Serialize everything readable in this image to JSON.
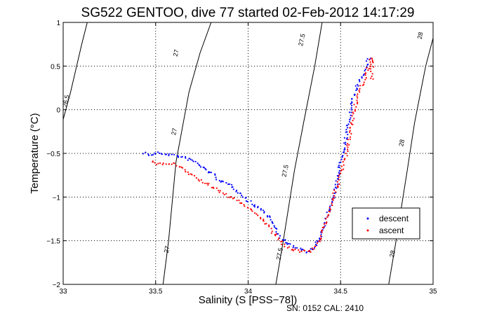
{
  "chart_data": {
    "type": "scatter",
    "title": "SG522 GENTOO, dive 77 started 02-Feb-2012 14:17:29",
    "xlabel": "Salinity (S [PSS−78])",
    "ylabel": "Temperature (°C)",
    "xlim": [
      33,
      35
    ],
    "ylim": [
      -2,
      1
    ],
    "x_ticks": [
      33,
      33.5,
      34,
      34.5,
      35
    ],
    "x_tick_labels": [
      "33",
      "33.5",
      "34",
      "34.5",
      "35"
    ],
    "y_ticks": [
      -2,
      -1.5,
      -1,
      -0.5,
      0,
      0.5,
      1
    ],
    "y_tick_labels": [
      "−2",
      "−1.5",
      "−1",
      "−0.5",
      "0",
      "0.5",
      "1"
    ],
    "grid": true,
    "legend_position": "lower-right",
    "footer": "SN: 0152  CAL: 2410",
    "density_contours": [
      {
        "label": "26.5",
        "points": [
          [
            32.995,
            -0.15
          ],
          [
            33.04,
            0.2
          ],
          [
            33.1,
            0.75
          ],
          [
            33.13,
            1.0
          ]
        ]
      },
      {
        "label": "27",
        "points": [
          [
            33.54,
            -2.0
          ],
          [
            33.57,
            -1.5
          ],
          [
            33.61,
            -0.6
          ],
          [
            33.68,
            0.2
          ],
          [
            33.74,
            0.65
          ],
          [
            33.8,
            1.0
          ]
        ]
      },
      {
        "label": "27.5",
        "points": [
          [
            34.15,
            -2.0
          ],
          [
            34.19,
            -1.5
          ],
          [
            34.25,
            -0.7
          ],
          [
            34.3,
            -0.15
          ],
          [
            34.36,
            0.5
          ],
          [
            34.4,
            1.0
          ]
        ]
      },
      {
        "label": "28",
        "points": [
          [
            34.76,
            -2.0
          ],
          [
            34.8,
            -1.5
          ],
          [
            34.86,
            -0.7
          ],
          [
            34.9,
            -0.15
          ],
          [
            34.96,
            0.5
          ],
          [
            35.0,
            0.82
          ]
        ]
      }
    ],
    "contour_labels": [
      {
        "text": "26.5",
        "x": 33.015,
        "y": 0.1
      },
      {
        "text": "27",
        "x": 33.61,
        "y": 0.65
      },
      {
        "text": "27.5",
        "x": 34.29,
        "y": 0.8
      },
      {
        "text": "28",
        "x": 34.93,
        "y": 0.85
      },
      {
        "text": "27",
        "x": 33.6,
        "y": -0.25
      },
      {
        "text": "27.5",
        "x": 34.2,
        "y": -0.7
      },
      {
        "text": "28",
        "x": 34.83,
        "y": -0.38
      },
      {
        "text": "27",
        "x": 33.56,
        "y": -1.6
      },
      {
        "text": "27.5",
        "x": 34.17,
        "y": -1.65
      },
      {
        "text": "28",
        "x": 34.78,
        "y": -1.65
      }
    ],
    "series": [
      {
        "name": "descent",
        "color": "#0000ff",
        "path": [
          [
            33.44,
            -0.49
          ],
          [
            33.47,
            -0.52
          ],
          [
            33.5,
            -0.5
          ],
          [
            33.53,
            -0.5
          ],
          [
            33.56,
            -0.51
          ],
          [
            33.6,
            -0.52
          ],
          [
            33.65,
            -0.55
          ],
          [
            33.7,
            -0.58
          ],
          [
            33.75,
            -0.66
          ],
          [
            33.8,
            -0.72
          ],
          [
            33.85,
            -0.82
          ],
          [
            33.92,
            -0.88
          ],
          [
            33.97,
            -0.98
          ],
          [
            34.02,
            -1.08
          ],
          [
            34.07,
            -1.14
          ],
          [
            34.12,
            -1.25
          ],
          [
            34.16,
            -1.42
          ],
          [
            34.2,
            -1.52
          ],
          [
            34.25,
            -1.57
          ],
          [
            34.29,
            -1.6
          ],
          [
            34.33,
            -1.63
          ],
          [
            34.36,
            -1.58
          ],
          [
            34.38,
            -1.5
          ],
          [
            34.41,
            -1.32
          ],
          [
            34.44,
            -1.12
          ],
          [
            34.47,
            -0.95
          ],
          [
            34.5,
            -0.58
          ],
          [
            34.52,
            -0.42
          ],
          [
            34.55,
            -0.08
          ],
          [
            34.57,
            0.15
          ],
          [
            34.6,
            0.33
          ],
          [
            34.63,
            0.45
          ],
          [
            34.65,
            0.57
          ],
          [
            34.66,
            0.6
          ]
        ],
        "count": 240
      },
      {
        "name": "ascent",
        "color": "#ff0000",
        "path": [
          [
            33.48,
            -0.58
          ],
          [
            33.5,
            -0.62
          ],
          [
            33.54,
            -0.62
          ],
          [
            33.6,
            -0.62
          ],
          [
            33.65,
            -0.68
          ],
          [
            33.7,
            -0.75
          ],
          [
            33.76,
            -0.84
          ],
          [
            33.82,
            -0.9
          ],
          [
            33.88,
            -0.98
          ],
          [
            33.95,
            -1.05
          ],
          [
            34.0,
            -1.12
          ],
          [
            34.05,
            -1.2
          ],
          [
            34.1,
            -1.3
          ],
          [
            34.15,
            -1.45
          ],
          [
            34.2,
            -1.57
          ],
          [
            34.25,
            -1.6
          ],
          [
            34.29,
            -1.62
          ],
          [
            34.33,
            -1.63
          ],
          [
            34.37,
            -1.56
          ],
          [
            34.4,
            -1.42
          ],
          [
            34.43,
            -1.22
          ],
          [
            34.46,
            -1.0
          ],
          [
            34.49,
            -0.82
          ],
          [
            34.52,
            -0.6
          ],
          [
            34.54,
            -0.45
          ],
          [
            34.56,
            -0.15
          ],
          [
            34.58,
            0.05
          ],
          [
            34.61,
            0.25
          ],
          [
            34.64,
            0.4
          ],
          [
            34.66,
            0.55
          ],
          [
            34.67,
            0.6
          ],
          [
            34.67,
            0.35
          ]
        ],
        "count": 220
      }
    ]
  }
}
